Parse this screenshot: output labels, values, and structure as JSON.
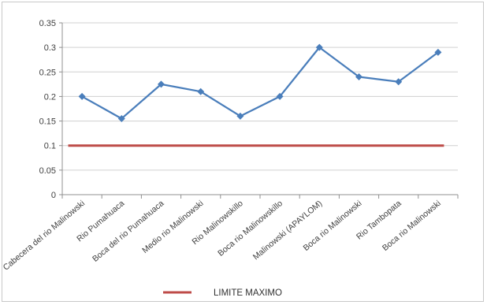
{
  "chart_data": {
    "type": "line",
    "title": "",
    "xlabel": "",
    "ylabel": "",
    "ylim": [
      0,
      0.35
    ],
    "yticks": [
      "0",
      "0.05",
      "0.1",
      "0.15",
      "0.2",
      "0.25",
      "0.3",
      "0.35"
    ],
    "grid": true,
    "legend_position": "bottom",
    "categories": [
      "Cabecera del rio Malinowski",
      "Rio Pumahuaca",
      "Boca del rio Pumahuaca",
      "Medio rio Malinowski",
      "Rio Malinowskillo",
      "Boca rio Malinowskillo",
      "Malinowski (APAYLOM)",
      "Boca rio Malinowski",
      "Rio Tambopata",
      "Boca rio Malinowski"
    ],
    "series": [
      {
        "values": [
          0.2,
          0.155,
          0.225,
          0.21,
          0.16,
          0.2,
          0.3,
          0.24,
          0.23,
          0.29
        ],
        "color": "#4a7ebb",
        "marker": "diamond"
      },
      {
        "name": "LIMITE MAXIMO",
        "values": [
          0.1,
          0.1,
          0.1,
          0.1,
          0.1,
          0.1,
          0.1,
          0.1,
          0.1,
          0.1
        ],
        "color": "#be4b48",
        "marker": "none"
      }
    ]
  }
}
